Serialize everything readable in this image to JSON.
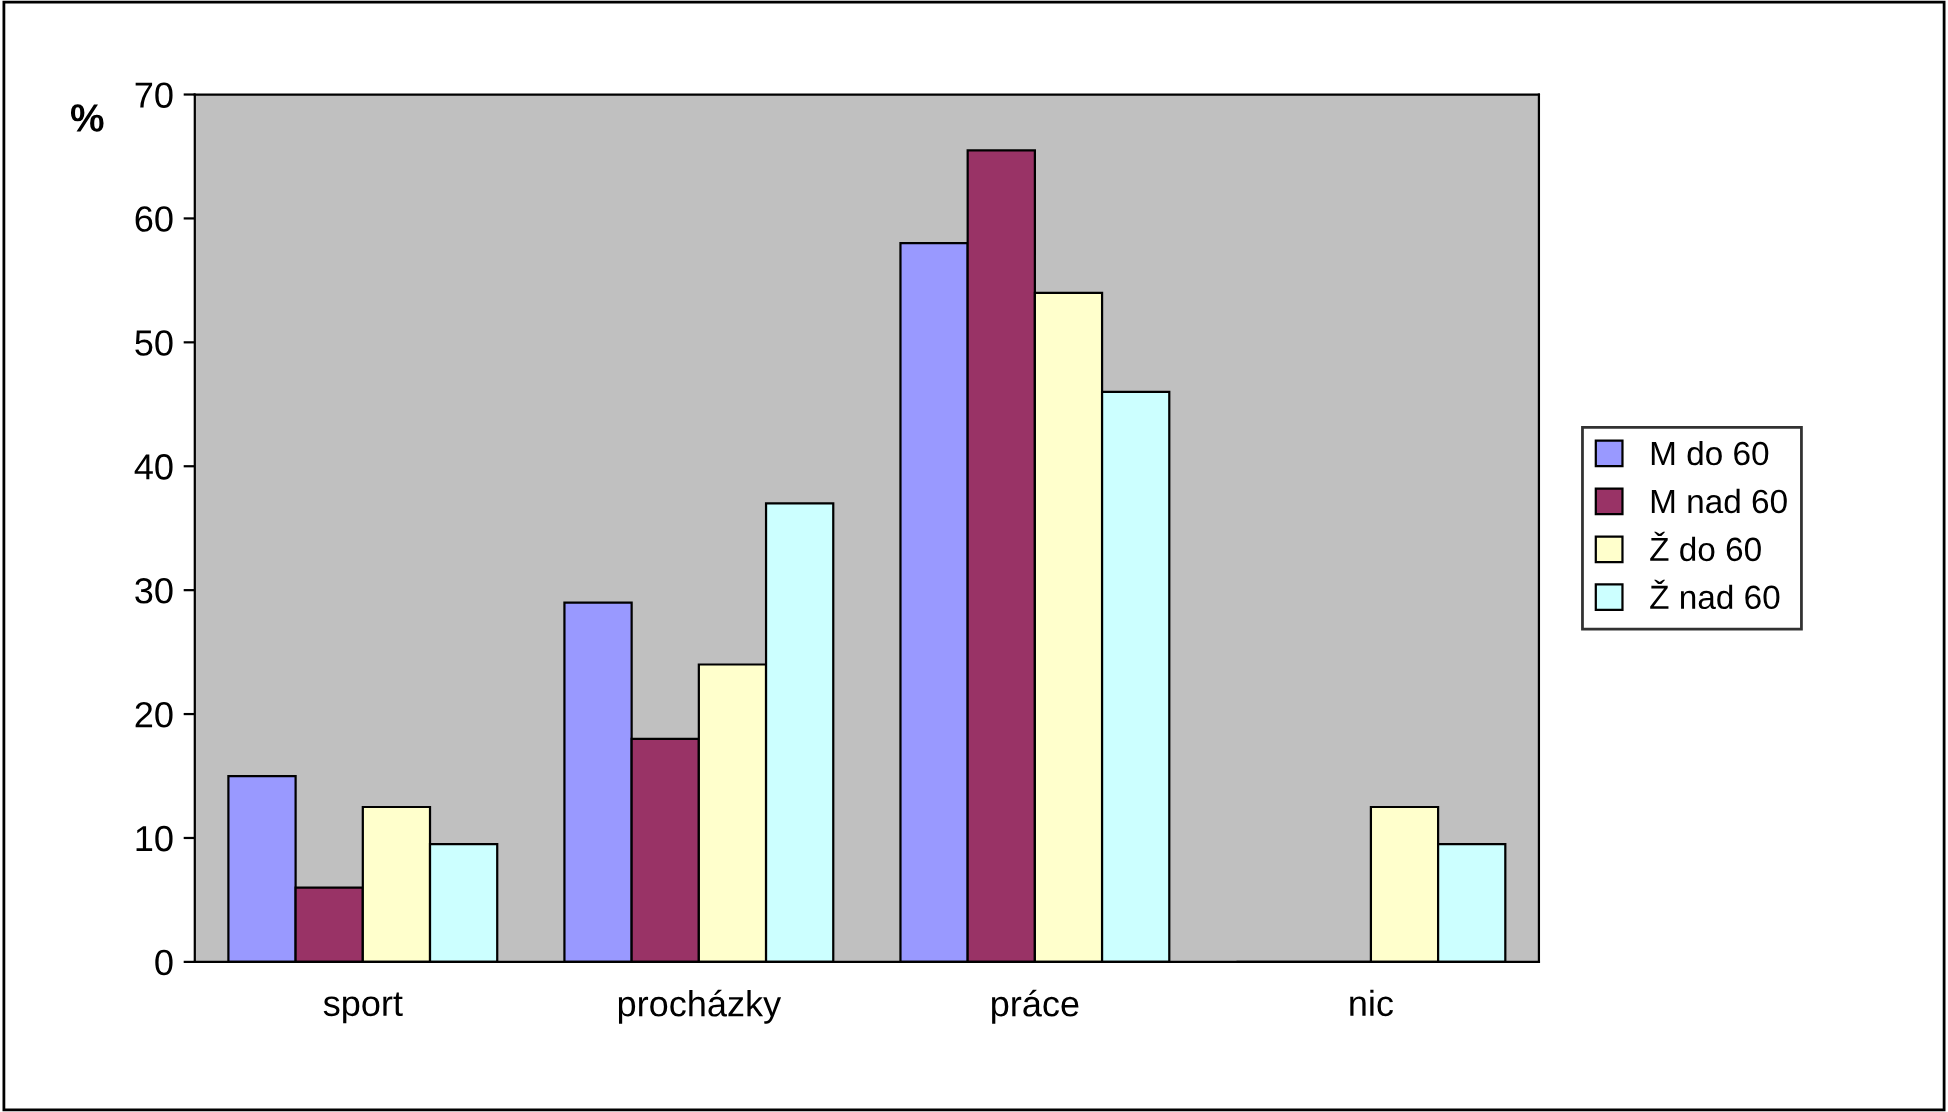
{
  "chart_data": {
    "type": "bar",
    "ylabel": "%",
    "categories": [
      "sport",
      "procházky",
      "práce",
      "nic"
    ],
    "series": [
      {
        "name": "M do 60",
        "color": "#9999ff",
        "values": [
          15,
          29,
          58,
          0
        ]
      },
      {
        "name": "M nad 60",
        "color": "#993366",
        "values": [
          6,
          18,
          65.5,
          0
        ]
      },
      {
        "name": "Ž do 60",
        "color": "#ffffcc",
        "values": [
          12.5,
          24,
          54,
          12.5
        ]
      },
      {
        "name": "Ž nad 60",
        "color": "#ccffff",
        "values": [
          9.5,
          37,
          46,
          9.5
        ]
      }
    ],
    "ylim": [
      0,
      70
    ],
    "yticks": [
      0,
      10,
      20,
      30,
      40,
      50,
      60,
      70
    ],
    "grid": false,
    "legend": "right"
  }
}
